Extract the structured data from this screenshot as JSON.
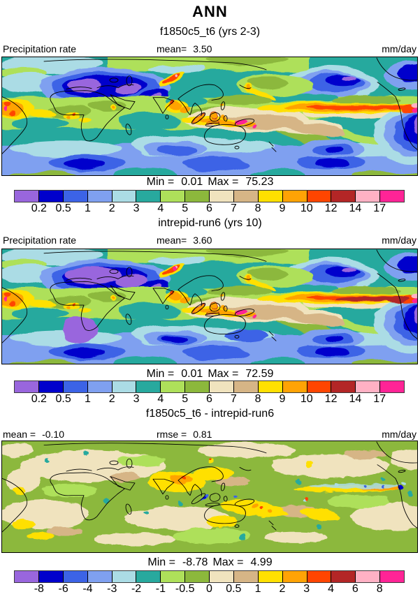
{
  "title": "ANN",
  "chart_data": {
    "type": "heatmap",
    "description": "Three stacked global filled-contour maps of precipitation rate: two model cases and their difference",
    "units": "mm/day",
    "palette": [
      "#9966DD",
      "#0000CC",
      "#3C63E6",
      "#7FA0F0",
      "#ABDCE5",
      "#28A99E",
      "#AEE05A",
      "#8CB83C",
      "#F0E3BE",
      "#D6B586",
      "#FFE000",
      "#FFA305",
      "#FF4500",
      "#B32626",
      "#FFB1C4",
      "#FF2496"
    ],
    "map_background": "#28A99E",
    "diff_background": "#8CB83C",
    "panels": [
      {
        "subtitle": "f1850c5_t6 (yrs 2-3)",
        "header": {
          "left": "Precipitation rate",
          "center_label": "mean=",
          "center_value": "3.50",
          "right": "mm/day"
        },
        "stats": {
          "min_label": "Min =",
          "min": "0.01",
          "max_label": "Max =",
          "max": "75.23"
        },
        "colorbar_levels": [
          "0.2",
          "0.5",
          "1",
          "2",
          "3",
          "4",
          "5",
          "6",
          "7",
          "8",
          "9",
          "10",
          "12",
          "14",
          "17"
        ]
      },
      {
        "subtitle": "intrepid-run6 (yrs 10)",
        "header": {
          "left": "Precipitation rate",
          "center_label": "mean=",
          "center_value": "3.60",
          "right": "mm/day"
        },
        "stats": {
          "min_label": "Min =",
          "min": "0.01",
          "max_label": "Max =",
          "max": "72.59"
        },
        "colorbar_levels": [
          "0.2",
          "0.5",
          "1",
          "2",
          "3",
          "4",
          "5",
          "6",
          "7",
          "8",
          "9",
          "10",
          "12",
          "14",
          "17"
        ]
      },
      {
        "subtitle": "f1850c5_t6 - intrepid-run6",
        "header": {
          "left_label": "mean =",
          "left_value": "-0.10",
          "center_label": "rmse =",
          "center_value": "0.81",
          "right": "mm/day"
        },
        "stats": {
          "min_label": "Min =",
          "min": "-8.78",
          "max_label": "Max =",
          "max": "4.99"
        },
        "colorbar_levels": [
          "-8",
          "-6",
          "-4",
          "-3",
          "-2",
          "-1",
          "-0.5",
          "0",
          "0.5",
          "1",
          "2",
          "3",
          "4",
          "6",
          "8"
        ]
      }
    ]
  }
}
